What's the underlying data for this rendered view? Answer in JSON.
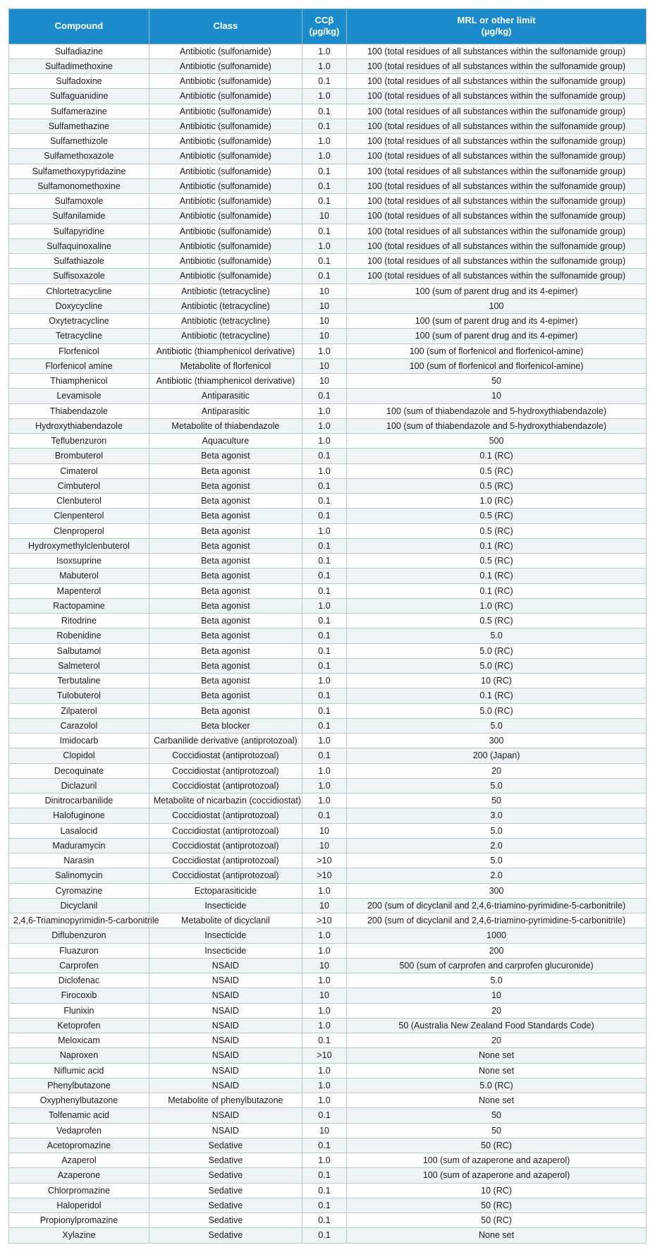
{
  "styling": {
    "header_bg": "#1b8bcb",
    "header_fg": "#ffffff",
    "border_color": "#b8c8d0",
    "row_alt_bg": "#eef3f6",
    "row_bg": "#ffffff",
    "font_family": "Segoe UI, Arial, sans-serif",
    "header_fontsize": 13,
    "cell_fontsize": 12.5
  },
  "headers": {
    "compound": "Compound",
    "class": "Class",
    "ccb_line1": "CCβ",
    "ccb_line2": "(µg/kg)",
    "mrl_line1": "MRL or other limit",
    "mrl_line2": "(µg/kg)"
  },
  "rows": [
    {
      "c": "Sulfadiazine",
      "k": "Antibiotic (sulfonamide)",
      "b": "1.0",
      "m": "100 (total residues of all substances within the sulfonamide group)"
    },
    {
      "c": "Sulfadimethoxine",
      "k": "Antibiotic (sulfonamide)",
      "b": "1.0",
      "m": "100 (total residues of all substances within the sulfonamide group)"
    },
    {
      "c": "Sulfadoxine",
      "k": "Antibiotic (sulfonamide)",
      "b": "0.1",
      "m": "100 (total residues of all substances within the sulfonamide group)"
    },
    {
      "c": "Sulfaguanidine",
      "k": "Antibiotic (sulfonamide)",
      "b": "1.0",
      "m": "100 (total residues of all substances within the sulfonamide group)"
    },
    {
      "c": "Sulfamerazine",
      "k": "Antibiotic (sulfonamide)",
      "b": "0.1",
      "m": "100 (total residues of all substances within the sulfonamide group)"
    },
    {
      "c": "Sulfamethazine",
      "k": "Antibiotic (sulfonamide)",
      "b": "0.1",
      "m": "100 (total residues of all substances within the sulfonamide group)"
    },
    {
      "c": "Sulfamethizole",
      "k": "Antibiotic (sulfonamide)",
      "b": "1.0",
      "m": "100 (total residues of all substances within the sulfonamide group)"
    },
    {
      "c": "Sulfamethoxazole",
      "k": "Antibiotic (sulfonamide)",
      "b": "1.0",
      "m": "100 (total residues of all substances within the sulfonamide group)"
    },
    {
      "c": "Sulfamethoxypyridazine",
      "k": "Antibiotic (sulfonamide)",
      "b": "0.1",
      "m": "100 (total residues of all substances within the sulfonamide group)"
    },
    {
      "c": "Sulfamonomethoxine",
      "k": "Antibiotic (sulfonamide)",
      "b": "0.1",
      "m": "100 (total residues of all substances within the sulfonamide group)"
    },
    {
      "c": "Sulfamoxole",
      "k": "Antibiotic (sulfonamide)",
      "b": "0.1",
      "m": "100 (total residues of all substances within the sulfonamide group)"
    },
    {
      "c": "Sulfanilamide",
      "k": "Antibiotic (sulfonamide)",
      "b": "10",
      "m": "100 (total residues of all substances within the sulfonamide group)"
    },
    {
      "c": "Sulfapyridine",
      "k": "Antibiotic (sulfonamide)",
      "b": "0.1",
      "m": "100 (total residues of all substances within the sulfonamide group)"
    },
    {
      "c": "Sulfaquinoxaline",
      "k": "Antibiotic (sulfonamide)",
      "b": "1.0",
      "m": "100 (total residues of all substances within the sulfonamide group)"
    },
    {
      "c": "Sulfathiazole",
      "k": "Antibiotic (sulfonamide)",
      "b": "0.1",
      "m": "100 (total residues of all substances within the sulfonamide group)"
    },
    {
      "c": "Sulfisoxazole",
      "k": "Antibiotic (sulfonamide)",
      "b": "0.1",
      "m": "100 (total residues of all substances within the sulfonamide group)"
    },
    {
      "c": "Chlortetracycline",
      "k": "Antibiotic (tetracycline)",
      "b": "10",
      "m": "100 (sum of parent drug and its 4-epimer)"
    },
    {
      "c": "Doxycycline",
      "k": "Antibiotic (tetracycline)",
      "b": "10",
      "m": "100"
    },
    {
      "c": "Oxytetracycline",
      "k": "Antibiotic (tetracycline)",
      "b": "10",
      "m": "100 (sum of parent drug and its 4-epimer)"
    },
    {
      "c": "Tetracycline",
      "k": "Antibiotic (tetracycline)",
      "b": "10",
      "m": "100 (sum of parent drug and its 4-epimer)"
    },
    {
      "c": "Florfenicol",
      "k": "Antibiotic (thiamphenicol derivative)",
      "b": "1.0",
      "m": "100 (sum of florfenicol and florfenicol-amine)"
    },
    {
      "c": "Florfenicol amine",
      "k": "Metabolite of florfenicol",
      "b": "10",
      "m": "100 (sum of florfenicol and florfenicol-amine)"
    },
    {
      "c": "Thiamphenicol",
      "k": "Antibiotic (thiamphenicol derivative)",
      "b": "10",
      "m": "50"
    },
    {
      "c": "Levamisole",
      "k": "Antiparasitic",
      "b": "0.1",
      "m": "10"
    },
    {
      "c": "Thiabendazole",
      "k": "Antiparasitic",
      "b": "1.0",
      "m": "100 (sum of thiabendazole and 5-hydroxythiabendazole)"
    },
    {
      "c": "Hydroxythiabendazole",
      "k": "Metabolite of thiabendazole",
      "b": "1.0",
      "m": "100 (sum of thiabendazole and 5-hydroxythiabendazole)"
    },
    {
      "c": "Teflubenzuron",
      "k": "Aquaculture",
      "b": "1.0",
      "m": "500"
    },
    {
      "c": "Brombuterol",
      "k": "Beta agonist",
      "b": "0.1",
      "m": "0.1 (RC)"
    },
    {
      "c": "Cimaterol",
      "k": "Beta agonist",
      "b": "1.0",
      "m": "0.5 (RC)"
    },
    {
      "c": "Cimbuterol",
      "k": "Beta agonist",
      "b": "0.1",
      "m": "0.5 (RC)"
    },
    {
      "c": "Clenbuterol",
      "k": "Beta agonist",
      "b": "0.1",
      "m": "1.0 (RC)"
    },
    {
      "c": "Clenpenterol",
      "k": "Beta agonist",
      "b": "0.1",
      "m": "0.5 (RC)"
    },
    {
      "c": "Clenproperol",
      "k": "Beta agonist",
      "b": "1.0",
      "m": "0.5 (RC)"
    },
    {
      "c": "Hydroxymethylclenbuterol",
      "k": "Beta agonist",
      "b": "0.1",
      "m": "0.1 (RC)"
    },
    {
      "c": "Isoxsuprine",
      "k": "Beta agonist",
      "b": "0.1",
      "m": "0.5 (RC)"
    },
    {
      "c": "Mabuterol",
      "k": "Beta agonist",
      "b": "0.1",
      "m": "0.1 (RC)"
    },
    {
      "c": "Mapenterol",
      "k": "Beta agonist",
      "b": "0.1",
      "m": "0.1 (RC)"
    },
    {
      "c": "Ractopamine",
      "k": "Beta agonist",
      "b": "1.0",
      "m": "1.0 (RC)"
    },
    {
      "c": "Ritodrine",
      "k": "Beta agonist",
      "b": "0.1",
      "m": "0.5 (RC)"
    },
    {
      "c": "Robenidine",
      "k": "Beta agonist",
      "b": "0.1",
      "m": "5.0"
    },
    {
      "c": "Salbutamol",
      "k": "Beta agonist",
      "b": "0.1",
      "m": "5.0 (RC)"
    },
    {
      "c": "Salmeterol",
      "k": "Beta agonist",
      "b": "0.1",
      "m": "5.0 (RC)"
    },
    {
      "c": "Terbutaline",
      "k": "Beta agonist",
      "b": "1.0",
      "m": "10 (RC)"
    },
    {
      "c": "Tulobuterol",
      "k": "Beta agonist",
      "b": "0.1",
      "m": "0.1 (RC)"
    },
    {
      "c": "Zilpaterol",
      "k": "Beta agonist",
      "b": "0.1",
      "m": "5.0 (RC)"
    },
    {
      "c": "Carazolol",
      "k": "Beta blocker",
      "b": "0.1",
      "m": "5.0"
    },
    {
      "c": "Imidocarb",
      "k": "Carbanilide derivative (antiprotozoal)",
      "b": "1.0",
      "m": "300"
    },
    {
      "c": "Clopidol",
      "k": "Coccidiostat (antiprotozoal)",
      "b": "0.1",
      "m": "200 (Japan)"
    },
    {
      "c": "Decoquinate",
      "k": "Coccidiostat (antiprotozoal)",
      "b": "1.0",
      "m": "20"
    },
    {
      "c": "Diclazuril",
      "k": "Coccidiostat (antiprotozoal)",
      "b": "1.0",
      "m": "5.0"
    },
    {
      "c": "Dinitrocarbanilide",
      "k": "Metabolite of nicarbazin (coccidiostat)",
      "b": "1.0",
      "m": "50"
    },
    {
      "c": "Halofuginone",
      "k": "Coccidiostat (antiprotozoal)",
      "b": "0.1",
      "m": "3.0"
    },
    {
      "c": "Lasalocid",
      "k": "Coccidiostat (antiprotozoal)",
      "b": "10",
      "m": "5.0"
    },
    {
      "c": "Maduramycin",
      "k": "Coccidiostat (antiprotozoal)",
      "b": "10",
      "m": "2.0"
    },
    {
      "c": "Narasin",
      "k": "Coccidiostat (antiprotozoal)",
      "b": ">10",
      "m": "5.0"
    },
    {
      "c": "Salinomycin",
      "k": "Coccidiostat (antiprotozoal)",
      "b": ">10",
      "m": "2.0"
    },
    {
      "c": "Cyromazine",
      "k": "Ectoparasiticide",
      "b": "1.0",
      "m": "300"
    },
    {
      "c": "Dicyclanil",
      "k": "Insecticide",
      "b": "10",
      "m": "200 (sum of dicyclanil and 2,4,6-triamino-pyrimidine-5-carbonitrile)"
    },
    {
      "c": "2,4,6-Triaminopyrimidin-5-carbonitrile",
      "k": "Metabolite of dicyclanil",
      "b": ">10",
      "m": "200 (sum of dicyclanil and 2,4,6-triamino-pyrimidine-5-carbonitrile)"
    },
    {
      "c": "Diflubenzuron",
      "k": "Insecticide",
      "b": "1.0",
      "m": "1000"
    },
    {
      "c": "Fluazuron",
      "k": "Insecticide",
      "b": "1.0",
      "m": "200"
    },
    {
      "c": "Carprofen",
      "k": "NSAID",
      "b": "10",
      "m": "500 (sum of carprofen and carprofen glucuronide)"
    },
    {
      "c": "Diclofenac",
      "k": "NSAID",
      "b": "1.0",
      "m": "5.0"
    },
    {
      "c": "Firocoxib",
      "k": "NSAID",
      "b": "10",
      "m": "10"
    },
    {
      "c": "Flunixin",
      "k": "NSAID",
      "b": "1.0",
      "m": "20"
    },
    {
      "c": "Ketoprofen",
      "k": "NSAID",
      "b": "1.0",
      "m": "50 (Australia New Zealand Food Standards Code)"
    },
    {
      "c": "Meloxicam",
      "k": "NSAID",
      "b": "0.1",
      "m": "20"
    },
    {
      "c": "Naproxen",
      "k": "NSAID",
      "b": ">10",
      "m": "None set"
    },
    {
      "c": "Niflumic acid",
      "k": "NSAID",
      "b": "1.0",
      "m": "None set"
    },
    {
      "c": "Phenylbutazone",
      "k": "NSAID",
      "b": "1.0",
      "m": "5.0 (RC)"
    },
    {
      "c": "Oxyphenylbutazone",
      "k": "Metabolite of phenylbutazone",
      "b": "1.0",
      "m": "None set"
    },
    {
      "c": "Tolfenamic acid",
      "k": "NSAID",
      "b": "0.1",
      "m": "50"
    },
    {
      "c": "Vedaprofen",
      "k": "NSAID",
      "b": "10",
      "m": "50"
    },
    {
      "c": "Acetopromazine",
      "k": "Sedative",
      "b": "0.1",
      "m": "50 (RC)"
    },
    {
      "c": "Azaperol",
      "k": "Sedative",
      "b": "1.0",
      "m": "100 (sum of azaperone and azaperol)"
    },
    {
      "c": "Azaperone",
      "k": "Sedative",
      "b": "0.1",
      "m": "100 (sum of azaperone and azaperol)"
    },
    {
      "c": "Chlorpromazine",
      "k": "Sedative",
      "b": "0.1",
      "m": "10 (RC)"
    },
    {
      "c": "Haloperidol",
      "k": "Sedative",
      "b": "0.1",
      "m": "50 (RC)"
    },
    {
      "c": "Propionylpromazine",
      "k": "Sedative",
      "b": "0.1",
      "m": "50 (RC)"
    },
    {
      "c": "Xylazine",
      "k": "Sedative",
      "b": "0.1",
      "m": "None set"
    }
  ]
}
